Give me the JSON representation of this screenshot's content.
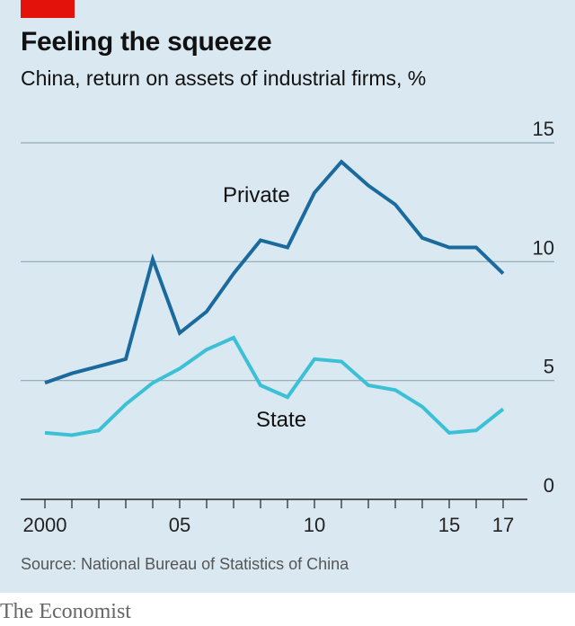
{
  "header": {
    "title": "Feeling the squeeze",
    "subtitle": "China, return on assets of industrial firms, %"
  },
  "footer": {
    "source": "Source: National Bureau of Statistics of China",
    "brand": "The Economist"
  },
  "colors": {
    "background": "#dae8f1",
    "accent": "#e3120b",
    "private": "#1a6a9e",
    "state": "#3cc0d6",
    "gridline": "#8fa7b5"
  },
  "chart_data": {
    "type": "line",
    "title": "Feeling the squeeze",
    "subtitle": "China, return on assets of industrial firms, %",
    "x": [
      2000,
      2001,
      2002,
      2003,
      2004,
      2005,
      2006,
      2007,
      2008,
      2009,
      2010,
      2011,
      2012,
      2013,
      2014,
      2015,
      2016,
      2017
    ],
    "series": [
      {
        "name": "Private",
        "values": [
          4.9,
          5.3,
          5.6,
          5.9,
          10.1,
          7.0,
          7.9,
          9.5,
          10.9,
          10.6,
          12.9,
          14.2,
          13.2,
          12.4,
          11.0,
          10.6,
          10.6,
          9.5
        ]
      },
      {
        "name": "State",
        "values": [
          2.8,
          2.7,
          2.9,
          4.0,
          4.9,
          5.5,
          6.3,
          6.8,
          4.8,
          4.3,
          5.9,
          5.8,
          4.8,
          4.6,
          3.9,
          2.8,
          2.9,
          3.8
        ]
      }
    ],
    "ylim": [
      0,
      15
    ],
    "yticks": [
      "0",
      "5",
      "10",
      "15"
    ],
    "yticks_values": [
      0,
      5,
      10,
      15
    ],
    "xticks": [
      "2000",
      "05",
      "10",
      "15",
      "17"
    ],
    "xticks_values": [
      2000,
      2005,
      2010,
      2015,
      2017
    ],
    "grid": true,
    "y_axis_position": "right"
  }
}
